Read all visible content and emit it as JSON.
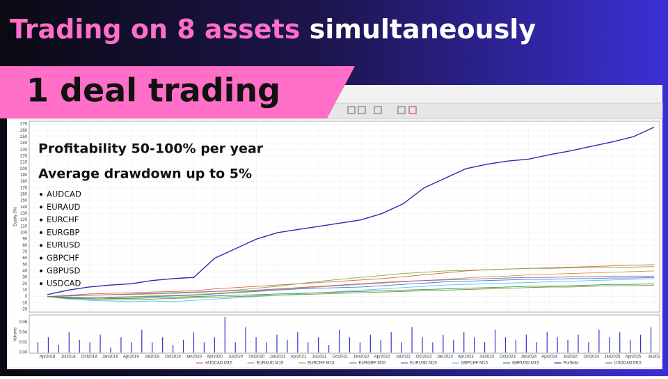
{
  "header": {
    "title_highlight": "Trading on 8 assets",
    "title_rest": "simultaneously",
    "banner": "1 deal trading"
  },
  "overlay": {
    "line1": "Profitability 50-100% per year",
    "line2": "Average drawdown up to 5%",
    "assets": [
      "AUDCAD",
      "EURAUD",
      "EURCHF",
      "EURGBP",
      "EURUSD",
      "GBPCHF",
      "GBPUSD",
      "USDCAD"
    ]
  },
  "chart_data": [
    {
      "type": "line",
      "y_label": "Equity (%)",
      "categories": [
        "Apr2018",
        "Jul2018",
        "Oct2018",
        "Jan2019",
        "Apr2019",
        "Jul2019",
        "Oct2019",
        "Jan2020",
        "Apr2020",
        "Jul2020",
        "Oct2020",
        "Jan2021",
        "Apr2021",
        "Jul2021",
        "Oct2021",
        "Jan2022",
        "Apr2022",
        "Jul2022",
        "Oct2022",
        "Jan2023",
        "Apr2023",
        "Jul2023",
        "Oct2023",
        "Jan2024",
        "Apr2024",
        "Jul2024",
        "Oct2024",
        "Jan2025",
        "Apr2025",
        "Jul202"
      ],
      "ylim": [
        -20,
        270
      ],
      "yticks": [
        -20,
        -10,
        0,
        10,
        20,
        30,
        40,
        50,
        60,
        70,
        80,
        90,
        100,
        110,
        120,
        130,
        140,
        150,
        160,
        170,
        180,
        190,
        200,
        210,
        220,
        230,
        240,
        250,
        260,
        270
      ],
      "grid": true,
      "series": [
        {
          "name": "AUDCAD M15",
          "color": "#e0603c",
          "values": [
            0,
            2,
            4,
            5,
            6,
            7,
            8,
            9,
            12,
            14,
            16,
            18,
            20,
            22,
            24,
            26,
            28,
            31,
            34,
            37,
            40,
            42,
            43,
            44,
            45,
            46,
            47,
            48,
            49,
            50
          ]
        },
        {
          "name": "EURAUD M15",
          "color": "#7cb342",
          "values": [
            0,
            1,
            2,
            3,
            3,
            4,
            5,
            6,
            8,
            10,
            13,
            16,
            20,
            24,
            27,
            30,
            33,
            36,
            38,
            40,
            41,
            42,
            43,
            44,
            44,
            45,
            45,
            46,
            46,
            47
          ]
        },
        {
          "name": "EURCHF M15",
          "color": "#c8a030",
          "values": [
            0,
            -1,
            -2,
            -1,
            0,
            1,
            2,
            3,
            5,
            7,
            9,
            11,
            13,
            15,
            17,
            19,
            21,
            23,
            25,
            27,
            29,
            31,
            32,
            34,
            35,
            36,
            37,
            38,
            39,
            40
          ]
        },
        {
          "name": "EURGBP M15",
          "color": "#9b59b6",
          "values": [
            0,
            1,
            2,
            3,
            4,
            5,
            6,
            7,
            8,
            9,
            10,
            12,
            14,
            16,
            18,
            20,
            22,
            24,
            25,
            26,
            27,
            28,
            29,
            30,
            30,
            31,
            31,
            32,
            32,
            32
          ]
        },
        {
          "name": "EURUSD M15",
          "color": "#3a7bd5",
          "values": [
            0,
            -2,
            -3,
            -2,
            -1,
            0,
            1,
            2,
            4,
            6,
            8,
            10,
            12,
            13,
            14,
            15,
            17,
            19,
            21,
            23,
            24,
            25,
            26,
            27,
            27,
            28,
            28,
            29,
            29,
            30
          ]
        },
        {
          "name": "GBPCHF M15",
          "color": "#4fc3f7",
          "values": [
            0,
            -4,
            -6,
            -7,
            -8,
            -7,
            -8,
            -6,
            -4,
            -2,
            0,
            2,
            4,
            6,
            8,
            10,
            12,
            14,
            16,
            18,
            19,
            20,
            21,
            22,
            23,
            24,
            25,
            26,
            27,
            28
          ]
        },
        {
          "name": "GBPUSD M15",
          "color": "#2e9e4f",
          "values": [
            0,
            -1,
            -2,
            -3,
            -3,
            -2,
            -1,
            0,
            1,
            2,
            3,
            4,
            5,
            6,
            7,
            8,
            9,
            10,
            11,
            12,
            13,
            14,
            15,
            16,
            16,
            17,
            18,
            19,
            19,
            20
          ]
        },
        {
          "name": "Portfolio",
          "color": "#2b2bb0",
          "values": [
            3,
            10,
            15,
            18,
            20,
            25,
            28,
            30,
            60,
            75,
            90,
            100,
            105,
            110,
            115,
            120,
            130,
            145,
            170,
            185,
            200,
            207,
            212,
            215,
            222,
            228,
            235,
            242,
            250,
            265
          ]
        },
        {
          "name": "USDCAD M15",
          "color": "#8a8a2a",
          "values": [
            0,
            -3,
            -4,
            -5,
            -5,
            -4,
            -3,
            -2,
            -1,
            0,
            1,
            2,
            3,
            4,
            5,
            6,
            7,
            8,
            9,
            10,
            11,
            12,
            13,
            14,
            15,
            15,
            16,
            17,
            17,
            18
          ]
        }
      ]
    },
    {
      "type": "bar",
      "y_label": "Volume",
      "color": "#3333cc",
      "ylim": [
        0,
        0.07
      ],
      "yticks": [
        {
          "value": 0,
          "label": "0.00"
        },
        0.02,
        0.04,
        0.06
      ],
      "values": [
        0.02,
        0.03,
        0.015,
        0.04,
        0.025,
        0.02,
        0.035,
        0.01,
        0.03,
        0.02,
        0.045,
        0.02,
        0.03,
        0.015,
        0.025,
        0.04,
        0.02,
        0.03,
        0.07,
        0.02,
        0.05,
        0.03,
        0.02,
        0.035,
        0.025,
        0.04,
        0.02,
        0.03,
        0.015,
        0.045,
        0.03,
        0.02,
        0.035,
        0.025,
        0.04,
        0.02,
        0.05,
        0.03,
        0.02,
        0.035,
        0.025,
        0.04,
        0.03,
        0.02,
        0.045,
        0.03,
        0.025,
        0.035,
        0.02,
        0.04,
        0.03,
        0.025,
        0.035,
        0.02,
        0.045,
        0.03,
        0.04,
        0.025,
        0.035,
        0.05
      ]
    }
  ]
}
